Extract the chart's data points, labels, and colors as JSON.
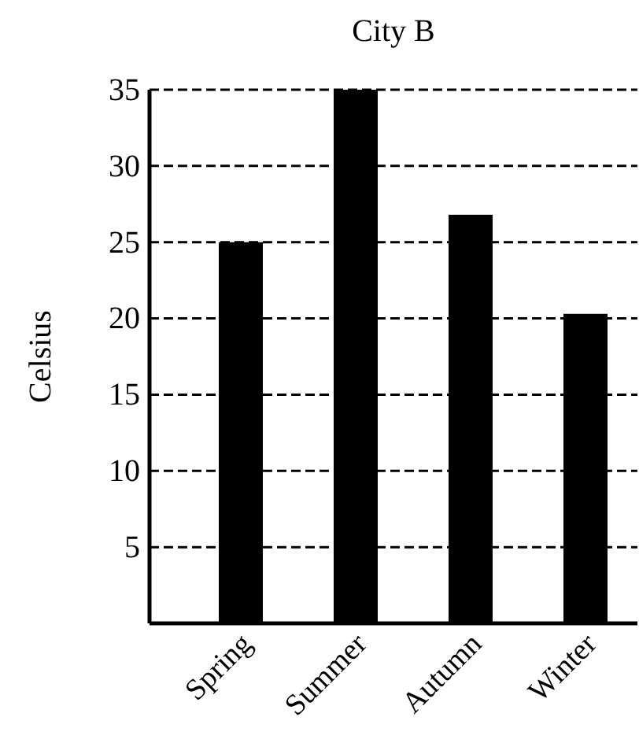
{
  "chart_data": {
    "type": "bar",
    "title": "City B",
    "ylabel": "Celsius",
    "categories": [
      "Spring",
      "Summer",
      "Autumn",
      "Winter"
    ],
    "values": [
      25,
      35,
      26.8,
      20.3
    ],
    "color": "#000000",
    "ylim": [
      0,
      35
    ],
    "yticks": [
      {
        "value": 0,
        "label": null
      },
      5,
      10,
      15,
      20,
      25,
      30,
      35
    ],
    "grid": "y",
    "line_style": "dashed"
  }
}
